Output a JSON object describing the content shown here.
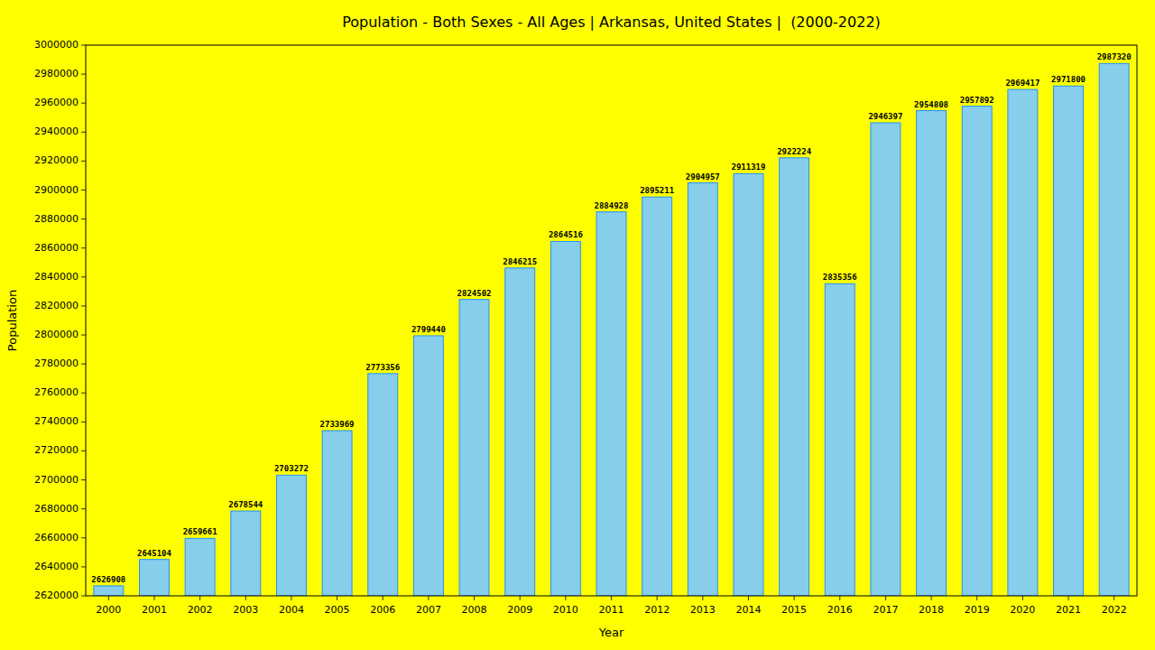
{
  "chart_data": {
    "type": "bar",
    "title": "Population - Both Sexes - All Ages | Arkansas, United States |  (2000-2022)",
    "x_label": "Year",
    "y_label": "Population",
    "categories": [
      "2000",
      "2001",
      "2002",
      "2003",
      "2004",
      "2005",
      "2006",
      "2007",
      "2008",
      "2009",
      "2010",
      "2011",
      "2012",
      "2013",
      "2014",
      "2015",
      "2016",
      "2017",
      "2018",
      "2019",
      "2020",
      "2021",
      "2022"
    ],
    "values": [
      2626908,
      2645104,
      2659661,
      2678544,
      2703272,
      2733969,
      2773356,
      2799440,
      2824502,
      2846215,
      2864516,
      2884928,
      2895211,
      2904957,
      2911319,
      2922224,
      2835356,
      2946397,
      2954808,
      2957892,
      2969417,
      2971800,
      2987320
    ],
    "color": "#87CEEB",
    "ylim": [
      2620000,
      3000000
    ],
    "yticks": [
      2620000,
      2640000,
      2660000,
      2680000,
      2700000,
      2720000,
      2740000,
      2760000,
      2780000,
      2800000,
      2820000,
      2840000,
      2860000,
      2880000,
      2900000,
      2920000,
      2940000,
      2960000,
      2980000,
      3000000
    ],
    "grid": false,
    "data_labels": true
  }
}
